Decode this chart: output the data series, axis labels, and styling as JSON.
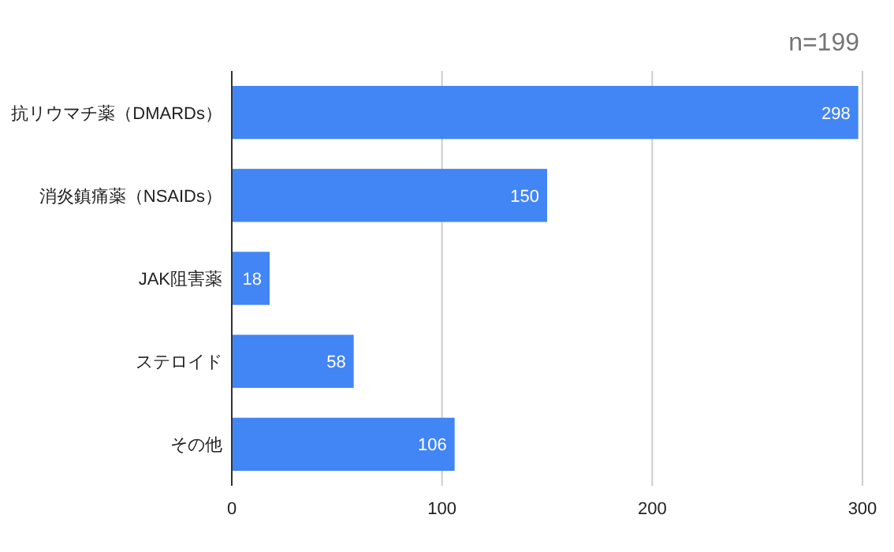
{
  "chart_data": {
    "type": "bar",
    "orientation": "horizontal",
    "categories": [
      "抗リウマチ薬（DMARDs）",
      "消炎鎮痛薬（NSAIDs）",
      "JAK阻害薬",
      "ステロイド",
      "その他"
    ],
    "values": [
      298,
      150,
      18,
      58,
      106
    ],
    "color": "#4285f4",
    "xlim": [
      0,
      300
    ],
    "xticks": [
      0,
      100,
      200,
      300
    ],
    "grid": "x",
    "data_labels": true,
    "annotations": [
      "n=199"
    ]
  }
}
